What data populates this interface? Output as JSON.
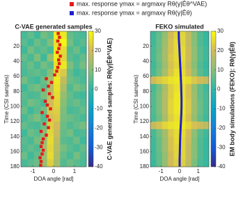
{
  "chart_data": [
    {
      "type": "heatmap",
      "title": "C-VAE generated samples",
      "xlabel": "DOA angle [rad]",
      "ylabel": "Time (CSI samples)",
      "colorbar_label": "C-VAE generated samples: Rθ(γ|Êθ^VAE)",
      "xlim": [
        -1.57,
        1.57
      ],
      "ylim": [
        0,
        180
      ],
      "xticks": [
        -1,
        0,
        1
      ],
      "yticks": [
        20,
        40,
        60,
        80,
        100,
        120,
        140,
        160,
        180
      ],
      "clim": [
        -40,
        30
      ],
      "cticks": [
        30,
        20,
        10,
        0,
        -10,
        -20,
        -30,
        -40
      ],
      "colormap": [
        "#352a87",
        "#0f5cdd",
        "#1481d6",
        "#06a4ca",
        "#2eb7a4",
        "#87bf77",
        "#d1bb59",
        "#f9fb0e"
      ],
      "z": [
        [
          3,
          6,
          2,
          8,
          5,
          28,
          27,
          6,
          4,
          3
        ],
        [
          5,
          2,
          7,
          4,
          9,
          26,
          29,
          8,
          3,
          5
        ],
        [
          2,
          8,
          4,
          6,
          3,
          27,
          25,
          4,
          7,
          2
        ],
        [
          6,
          3,
          9,
          2,
          12,
          28,
          24,
          5,
          3,
          6
        ],
        [
          4,
          7,
          3,
          8,
          5,
          26,
          27,
          9,
          4,
          8
        ],
        [
          3,
          5,
          6,
          4,
          10,
          25,
          22,
          6,
          2,
          4
        ],
        [
          8,
          4,
          2,
          7,
          14,
          27,
          18,
          7,
          5,
          3
        ],
        [
          2,
          6,
          8,
          5,
          16,
          26,
          15,
          4,
          8,
          6
        ],
        [
          5,
          3,
          4,
          9,
          18,
          25,
          12,
          6,
          3,
          2
        ],
        [
          4,
          8,
          6,
          3,
          20,
          24,
          10,
          5,
          7,
          4
        ],
        [
          7,
          2,
          5,
          8,
          22,
          23,
          9,
          3,
          4,
          6
        ],
        [
          3,
          6,
          9,
          4,
          21,
          22,
          8,
          7,
          5,
          3
        ],
        [
          6,
          4,
          3,
          7,
          23,
          20,
          7,
          4,
          6,
          8
        ],
        [
          2,
          7,
          5,
          10,
          24,
          19,
          6,
          8,
          3,
          4
        ],
        [
          5,
          3,
          8,
          12,
          25,
          17,
          5,
          4,
          7,
          2
        ],
        [
          4,
          6,
          4,
          14,
          24,
          16,
          8,
          5,
          3,
          6
        ],
        [
          7,
          2,
          6,
          13,
          25,
          15,
          6,
          3,
          8,
          4
        ],
        [
          3,
          5,
          7,
          12,
          23,
          14,
          4,
          7,
          5,
          3
        ]
      ],
      "series": [
        {
          "name": "max. response γmax = argmaxγ Rθ(γ|Êθ^VAE)",
          "color": "#e41a1c",
          "kind": "scatter",
          "x": [
            0.22,
            0.28,
            0.2,
            0.3,
            0.25,
            0.18,
            0.32,
            0.24,
            0.27,
            0.2,
            0.15,
            0.05,
            -0.35,
            -0.1,
            -0.25,
            -0.5,
            -0.2,
            -0.05,
            -0.4,
            -0.3,
            -0.15,
            -0.55,
            -0.3,
            -0.2,
            -0.45,
            -0.25,
            -0.6,
            -0.35,
            -0.5,
            -0.55,
            -0.6,
            -0.5,
            -0.55,
            -0.65,
            -0.6,
            -0.62
          ],
          "y": [
            3,
            8,
            13,
            18,
            23,
            28,
            33,
            38,
            43,
            48,
            53,
            58,
            63,
            68,
            73,
            78,
            83,
            88,
            93,
            98,
            103,
            108,
            113,
            118,
            123,
            128,
            133,
            138,
            143,
            148,
            153,
            158,
            163,
            168,
            173,
            178
          ]
        }
      ]
    },
    {
      "type": "heatmap",
      "title": "FEKO simulated",
      "xlabel": "DOA angle [rad]",
      "ylabel": "Time (CSI samples)",
      "colorbar_label": "EM body simulations (FEKO): Rθ(γ|Êθ)",
      "xlim": [
        -1.57,
        1.57
      ],
      "ylim": [
        0,
        180
      ],
      "xticks": [
        -1,
        0,
        1
      ],
      "yticks": [
        20,
        40,
        60,
        80,
        100,
        120,
        140,
        160,
        180
      ],
      "clim": [
        -40,
        30
      ],
      "cticks": [
        30,
        20,
        10,
        0,
        -10,
        -20,
        -30,
        -40
      ],
      "colormap": [
        "#352a87",
        "#0f5cdd",
        "#1481d6",
        "#06a4ca",
        "#2eb7a4",
        "#87bf77",
        "#d1bb59",
        "#f9fb0e"
      ],
      "z": [
        [
          2,
          6,
          12,
          20,
          24,
          24,
          18,
          10,
          4,
          1
        ],
        [
          2,
          7,
          13,
          21,
          25,
          24,
          18,
          10,
          4,
          1
        ],
        [
          3,
          7,
          14,
          21,
          25,
          25,
          19,
          11,
          5,
          2
        ],
        [
          3,
          8,
          14,
          22,
          25,
          25,
          19,
          11,
          5,
          2
        ],
        [
          2,
          7,
          13,
          21,
          24,
          24,
          18,
          10,
          4,
          1
        ],
        [
          3,
          8,
          15,
          22,
          26,
          25,
          20,
          12,
          5,
          2
        ],
        [
          20,
          22,
          24,
          26,
          27,
          27,
          25,
          22,
          20,
          18
        ],
        [
          3,
          8,
          15,
          23,
          26,
          26,
          21,
          12,
          6,
          2
        ],
        [
          4,
          9,
          16,
          23,
          27,
          26,
          21,
          13,
          6,
          3
        ],
        [
          4,
          9,
          16,
          24,
          27,
          27,
          22,
          13,
          7,
          3
        ],
        [
          4,
          9,
          16,
          24,
          27,
          27,
          22,
          13,
          7,
          3
        ],
        [
          3,
          8,
          15,
          23,
          26,
          26,
          21,
          12,
          6,
          2
        ],
        [
          18,
          21,
          24,
          26,
          27,
          27,
          24,
          21,
          19,
          17
        ],
        [
          3,
          8,
          14,
          22,
          25,
          25,
          20,
          11,
          5,
          2
        ],
        [
          2,
          7,
          13,
          21,
          25,
          24,
          19,
          10,
          4,
          1
        ],
        [
          2,
          7,
          13,
          21,
          24,
          24,
          18,
          10,
          4,
          1
        ],
        [
          2,
          6,
          12,
          20,
          24,
          24,
          18,
          10,
          4,
          1
        ],
        [
          1,
          6,
          12,
          20,
          23,
          23,
          17,
          9,
          3,
          1
        ]
      ],
      "series": [
        {
          "name": "max. response γmax = argmaxγ Rθ(γ|Êθ)",
          "color": "#1f1fd0",
          "kind": "line",
          "x": [
            -0.05,
            -0.04,
            -0.02,
            0,
            0.02,
            0.04,
            0.06,
            0.08,
            0.09,
            0.1,
            0.1,
            0.09,
            0.07,
            0.05,
            0.03,
            0.02,
            0.01,
            0,
            0
          ],
          "y": [
            0,
            10,
            20,
            30,
            40,
            50,
            60,
            70,
            80,
            90,
            100,
            110,
            120,
            130,
            140,
            150,
            160,
            170,
            180
          ]
        }
      ]
    }
  ]
}
